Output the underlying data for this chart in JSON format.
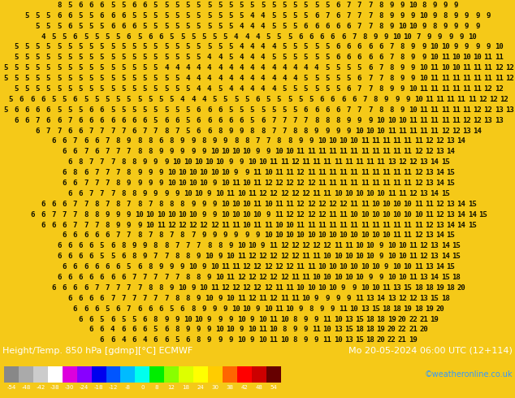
{
  "title_left": "Height/Temp. 850 hPa [gdmp][°C] ECMWF",
  "title_right": "Mo 20-05-2024 06:00 UTC (12+114)",
  "credit": "©weatheronline.co.uk",
  "colorbar_values": [
    "-54",
    "-48",
    "-42",
    "-38",
    "-30",
    "-24",
    "-18",
    "-12",
    "-8",
    "0",
    "8",
    "12",
    "18",
    "24",
    "30",
    "38",
    "42",
    "48",
    "54"
  ],
  "colorbar_colors": [
    "#888888",
    "#aaaaaa",
    "#cccccc",
    "#ffffff",
    "#dd00dd",
    "#8800ff",
    "#0000ee",
    "#0055ff",
    "#00bbff",
    "#00ffee",
    "#00ee00",
    "#88ff00",
    "#ddff00",
    "#ffff00",
    "#ffcc00",
    "#ff6600",
    "#ff0000",
    "#cc0000",
    "#660000"
  ],
  "background_color": "#f5c918",
  "text_color": "#111100",
  "map_rows": 33,
  "map_cols": 52,
  "font_size_map": 6.5,
  "font_size_title": 8.0,
  "font_size_credit": 7.0,
  "bottom_bg": "#1a1a00",
  "numbers": [
    [
      8,
      5,
      6,
      6,
      6,
      5,
      5,
      6,
      6,
      5,
      5,
      5,
      5,
      5,
      5,
      5,
      5,
      5,
      5,
      5,
      5,
      5,
      5,
      5,
      5,
      5,
      6,
      7,
      7,
      7,
      8,
      9,
      9,
      10,
      8,
      9,
      9,
      9
    ],
    [
      5,
      5,
      5,
      6,
      6,
      5,
      5,
      6,
      6,
      6,
      5,
      5,
      5,
      5,
      5,
      5,
      5,
      5,
      5,
      5,
      5,
      4,
      4,
      5,
      5,
      5,
      5,
      6,
      7,
      6,
      7,
      7,
      7,
      8,
      9,
      9,
      9,
      10,
      9,
      8,
      9,
      9,
      9,
      9
    ],
    [
      5,
      5,
      5,
      6,
      5,
      5,
      5,
      6,
      6,
      6,
      5,
      5,
      5,
      5,
      5,
      5,
      5,
      5,
      5,
      4,
      4,
      4,
      5,
      5,
      5,
      6,
      6,
      6,
      6,
      6,
      7,
      7,
      8,
      9,
      10,
      10,
      9,
      8,
      9,
      9,
      9,
      9
    ],
    [
      4,
      5,
      5,
      6,
      5,
      5,
      5,
      5,
      6,
      5,
      6,
      6,
      5,
      5,
      5,
      5,
      5,
      5,
      4,
      4,
      4,
      5,
      5,
      5,
      6,
      6,
      6,
      6,
      6,
      7,
      8,
      9,
      9,
      10,
      10,
      7,
      9,
      9,
      9,
      9,
      10
    ],
    [
      5,
      5,
      5,
      5,
      5,
      5,
      5,
      5,
      5,
      5,
      5,
      5,
      5,
      5,
      5,
      5,
      5,
      5,
      5,
      5,
      5,
      4,
      4,
      4,
      4,
      5,
      5,
      5,
      5,
      5,
      6,
      6,
      6,
      6,
      6,
      7,
      8,
      9,
      9,
      10,
      10,
      9,
      9,
      9,
      9,
      10
    ],
    [
      5,
      5,
      5,
      5,
      5,
      5,
      5,
      5,
      5,
      5,
      5,
      5,
      5,
      5,
      5,
      5,
      5,
      5,
      4,
      4,
      5,
      4,
      4,
      4,
      5,
      5,
      5,
      5,
      5,
      5,
      6,
      6,
      6,
      6,
      6,
      7,
      8,
      9,
      9,
      10,
      11,
      10,
      10,
      10,
      11,
      11
    ],
    [
      5,
      5,
      5,
      5,
      5,
      5,
      5,
      5,
      5,
      5,
      5,
      5,
      5,
      5,
      5,
      4,
      4,
      4,
      4,
      4,
      4,
      4,
      4,
      4,
      4,
      4,
      4,
      4,
      4,
      4,
      5,
      5,
      5,
      5,
      6,
      7,
      8,
      9,
      9,
      10,
      11,
      10,
      10,
      11,
      11,
      11,
      12,
      12
    ],
    [
      5,
      5,
      5,
      5,
      5,
      5,
      5,
      5,
      5,
      5,
      5,
      5,
      5,
      5,
      5,
      5,
      5,
      4,
      4,
      4,
      4,
      4,
      4,
      4,
      4,
      4,
      4,
      4,
      5,
      5,
      5,
      5,
      5,
      6,
      7,
      7,
      8,
      9,
      9,
      10,
      11,
      11,
      11,
      11,
      11,
      11,
      11,
      12
    ],
    [
      5,
      5,
      5,
      5,
      5,
      5,
      5,
      5,
      5,
      5,
      5,
      5,
      5,
      5,
      5,
      5,
      5,
      4,
      4,
      5,
      4,
      4,
      4,
      4,
      4,
      5,
      5,
      5,
      5,
      5,
      5,
      6,
      7,
      7,
      8,
      9,
      9,
      10,
      11,
      11,
      11,
      11,
      11,
      11,
      12,
      12
    ],
    [
      5,
      6,
      6,
      6,
      5,
      5,
      6,
      5,
      5,
      5,
      5,
      5,
      5,
      5,
      5,
      5,
      4,
      4,
      4,
      5,
      5,
      5,
      5,
      6,
      5,
      5,
      5,
      5,
      5,
      6,
      6,
      6,
      6,
      7,
      8,
      9,
      9,
      9,
      10,
      11,
      11,
      11,
      11,
      11,
      12,
      12,
      12
    ],
    [
      5,
      6,
      6,
      6,
      6,
      5,
      5,
      5,
      6,
      6,
      5,
      5,
      5,
      5,
      5,
      5,
      5,
      5,
      6,
      6,
      6,
      5,
      5,
      5,
      5,
      5,
      5,
      5,
      6,
      6,
      6,
      6,
      7,
      7,
      7,
      8,
      8,
      9,
      10,
      11,
      11,
      11,
      11,
      11,
      12,
      12,
      13,
      13
    ],
    [
      6,
      6,
      7,
      6,
      6,
      7,
      6,
      6,
      6,
      6,
      6,
      6,
      6,
      5,
      6,
      6,
      5,
      6,
      6,
      6,
      6,
      6,
      5,
      6,
      7,
      7,
      7,
      7,
      8,
      8,
      8,
      9,
      9,
      9,
      10,
      10,
      10,
      11,
      11,
      11,
      11,
      11,
      12,
      12,
      13,
      13
    ],
    [
      6,
      7,
      7,
      6,
      6,
      7,
      7,
      7,
      7,
      6,
      7,
      7,
      8,
      7,
      5,
      6,
      6,
      8,
      9,
      9,
      8,
      8,
      7,
      7,
      8,
      8,
      9,
      9,
      9,
      9,
      10,
      10,
      10,
      11,
      11,
      11,
      11,
      11,
      12,
      12,
      13,
      14
    ],
    [
      6,
      6,
      7,
      6,
      6,
      7,
      8,
      9,
      8,
      8,
      6,
      8,
      9,
      9,
      8,
      9,
      9,
      8,
      8,
      7,
      7,
      8,
      8,
      9,
      9,
      10,
      10,
      10,
      10,
      11,
      11,
      11,
      11,
      11,
      11,
      12,
      12,
      13,
      14
    ],
    [
      6,
      6,
      7,
      6,
      7,
      7,
      7,
      8,
      8,
      9,
      9,
      9,
      9,
      9,
      10,
      10,
      10,
      10,
      9,
      9,
      10,
      10,
      11,
      11,
      11,
      11,
      11,
      11,
      11,
      11,
      11,
      11,
      11,
      12,
      12,
      13,
      14
    ],
    [
      6,
      8,
      7,
      7,
      7,
      8,
      8,
      9,
      9,
      9,
      10,
      10,
      10,
      10,
      10,
      9,
      9,
      10,
      10,
      11,
      11,
      12,
      11,
      11,
      11,
      11,
      11,
      11,
      11,
      11,
      13,
      12,
      12,
      13,
      14,
      15
    ],
    [
      6,
      8,
      6,
      7,
      7,
      7,
      8,
      9,
      9,
      9,
      10,
      10,
      10,
      10,
      10,
      10,
      9,
      9,
      11,
      10,
      11,
      11,
      12,
      11,
      11,
      11,
      11,
      11,
      11,
      11,
      11,
      11,
      11,
      12,
      13,
      14,
      15
    ],
    [
      6,
      6,
      7,
      7,
      7,
      8,
      9,
      9,
      9,
      9,
      10,
      10,
      10,
      10,
      9,
      10,
      11,
      10,
      11,
      12,
      12,
      12,
      12,
      12,
      11,
      11,
      11,
      11,
      11,
      11,
      11,
      11,
      11,
      12,
      13,
      14,
      15
    ],
    [
      6,
      6,
      7,
      7,
      7,
      8,
      8,
      9,
      9,
      9,
      9,
      10,
      10,
      9,
      10,
      11,
      10,
      11,
      12,
      12,
      12,
      12,
      12,
      11,
      11,
      10,
      10,
      10,
      10,
      10,
      11,
      11,
      12,
      13,
      14,
      15
    ],
    [
      6,
      6,
      6,
      7,
      7,
      8,
      7,
      8,
      7,
      8,
      7,
      8,
      8,
      8,
      9,
      9,
      9,
      10,
      10,
      10,
      11,
      10,
      11,
      11,
      12,
      12,
      12,
      12,
      12,
      11,
      11,
      10,
      10,
      10,
      10,
      11,
      11,
      12,
      13,
      14,
      15
    ],
    [
      6,
      6,
      7,
      7,
      7,
      8,
      8,
      9,
      9,
      9,
      10,
      10,
      10,
      10,
      10,
      10,
      9,
      9,
      10,
      10,
      10,
      10,
      9,
      11,
      12,
      12,
      12,
      12,
      11,
      11,
      10,
      10,
      10,
      10,
      10,
      10,
      10,
      11,
      12,
      13,
      14,
      14,
      15
    ],
    [
      6,
      6,
      6,
      7,
      7,
      7,
      8,
      9,
      9,
      9,
      10,
      11,
      12,
      12,
      12,
      12,
      12,
      11,
      11,
      10,
      11,
      11,
      10,
      10,
      11,
      11,
      11,
      11,
      11,
      11,
      11,
      11,
      11,
      11,
      11,
      11,
      12,
      13,
      14,
      14,
      15
    ],
    [
      6,
      6,
      6,
      6,
      6,
      7,
      7,
      8,
      7,
      8,
      7,
      8,
      7,
      9,
      9,
      9,
      9,
      9,
      9,
      10,
      10,
      10,
      10,
      10,
      10,
      10,
      10,
      10,
      10,
      10,
      10,
      11,
      11,
      12,
      13,
      14,
      15
    ],
    [
      6,
      6,
      6,
      6,
      5,
      6,
      8,
      9,
      9,
      8,
      8,
      7,
      7,
      7,
      8,
      8,
      9,
      10,
      10,
      9,
      11,
      12,
      12,
      12,
      12,
      12,
      11,
      11,
      10,
      10,
      9,
      10,
      10,
      11,
      12,
      13,
      14,
      15
    ],
    [
      6,
      6,
      6,
      6,
      5,
      5,
      6,
      8,
      9,
      7,
      7,
      8,
      8,
      9,
      10,
      9,
      10,
      11,
      12,
      12,
      12,
      12,
      12,
      11,
      11,
      10,
      10,
      10,
      10,
      10,
      9,
      10,
      10,
      11,
      12,
      13,
      14,
      15
    ],
    [
      6,
      6,
      6,
      6,
      6,
      6,
      5,
      6,
      8,
      9,
      9,
      9,
      10,
      9,
      10,
      11,
      11,
      12,
      12,
      12,
      12,
      12,
      11,
      11,
      10,
      10,
      10,
      10,
      10,
      10,
      9,
      10,
      10,
      11,
      13,
      14,
      15
    ],
    [
      6,
      6,
      6,
      6,
      6,
      6,
      6,
      7,
      7,
      7,
      7,
      7,
      8,
      8,
      9,
      10,
      11,
      12,
      12,
      12,
      12,
      12,
      11,
      11,
      10,
      10,
      10,
      10,
      10,
      9,
      9,
      10,
      10,
      11,
      13,
      14,
      15,
      18
    ],
    [
      6,
      6,
      6,
      6,
      7,
      7,
      7,
      7,
      7,
      8,
      8,
      9,
      10,
      9,
      10,
      11,
      12,
      12,
      12,
      12,
      12,
      11,
      11,
      10,
      10,
      10,
      10,
      9,
      9,
      10,
      10,
      11,
      13,
      15,
      18,
      18,
      19,
      18,
      20
    ],
    [
      6,
      6,
      6,
      6,
      7,
      7,
      7,
      7,
      7,
      7,
      8,
      8,
      9,
      10,
      9,
      10,
      11,
      12,
      11,
      12,
      11,
      11,
      10,
      9,
      9,
      9,
      9,
      11,
      13,
      14,
      13,
      12,
      12,
      13,
      15,
      18
    ],
    [
      6,
      6,
      6,
      5,
      6,
      7,
      6,
      6,
      6,
      5,
      6,
      8,
      9,
      9,
      9,
      10,
      10,
      9,
      10,
      11,
      10,
      9,
      8,
      9,
      9,
      11,
      10,
      13,
      15,
      18,
      18,
      19,
      18,
      19,
      20
    ],
    [
      6,
      6,
      5,
      6,
      5,
      5,
      6,
      8,
      9,
      9,
      10,
      10,
      9,
      9,
      9,
      10,
      9,
      10,
      11,
      10,
      8,
      9,
      9,
      11,
      10,
      13,
      15,
      18,
      18,
      19,
      20,
      22,
      21,
      19
    ],
    [
      6,
      6,
      4,
      6,
      6,
      6,
      5,
      6,
      8,
      9,
      9,
      9,
      10,
      10,
      9,
      10,
      11,
      10,
      8,
      9,
      9,
      11,
      10,
      13,
      15,
      18,
      18,
      19,
      20,
      22,
      21,
      20
    ],
    [
      6,
      6,
      4,
      6,
      4,
      6,
      6,
      5,
      6,
      8,
      9,
      9,
      9,
      10,
      9,
      10,
      11,
      10,
      8,
      9,
      9,
      11,
      10,
      13,
      15,
      18,
      20,
      22,
      21,
      19
    ]
  ]
}
